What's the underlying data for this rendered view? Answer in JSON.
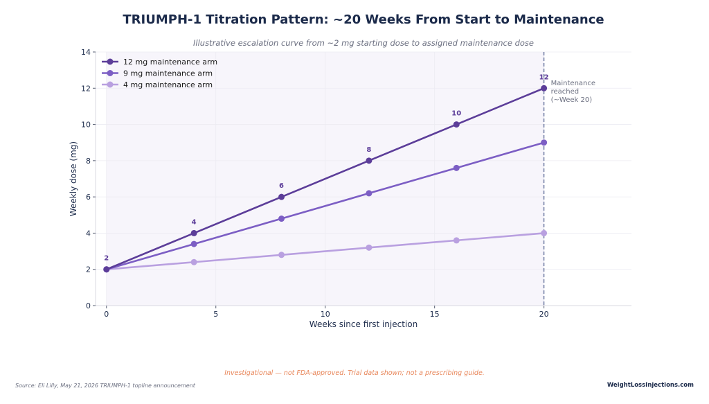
{
  "title": "TRIUMPH-1 Titration Pattern: ~20 Weeks From Start to Maintenance",
  "subtitle": "Illustrative escalation curve from ~2 mg starting dose to assigned maintenance dose",
  "footer": {
    "disclaimer": "Investigational — not FDA-approved. Trial data shown; not a prescribing guide.",
    "source": "Source: Eli Lilly, May 21, 2026 TRIUMPH-1 topline announcement",
    "brand": "WeightLossInjections.com"
  },
  "chart_data": {
    "type": "line",
    "xlabel": "Weeks since first injection",
    "ylabel": "Weekly dose (mg)",
    "xlim": [
      -0.5,
      24
    ],
    "ylim": [
      0,
      14
    ],
    "xticks": [
      0,
      5,
      10,
      15,
      20
    ],
    "yticks": [
      0,
      2,
      4,
      6,
      8,
      10,
      12,
      14
    ],
    "grid": true,
    "legend_position": "top-left",
    "shaded_region": {
      "x_from": 0,
      "x_to": 20,
      "color": "#f7f5fb"
    },
    "series": [
      {
        "name": "12 mg maintenance arm",
        "color": "#5c3d99",
        "x": [
          0,
          4,
          8,
          12,
          16,
          20
        ],
        "y": [
          2,
          4,
          6,
          8,
          10,
          12
        ],
        "labels": [
          "2",
          "4",
          "6",
          "8",
          "10",
          "12"
        ]
      },
      {
        "name": "9 mg maintenance arm",
        "color": "#7c5ec4",
        "x": [
          0,
          4,
          8,
          12,
          16,
          20
        ],
        "y": [
          2,
          3.4,
          4.8,
          6.2,
          7.6,
          9
        ]
      },
      {
        "name": "4 mg maintenance arm",
        "color": "#b9a0e0",
        "x": [
          0,
          4,
          8,
          12,
          16,
          20
        ],
        "y": [
          2,
          2.4,
          2.8,
          3.2,
          3.6,
          4
        ]
      }
    ],
    "annotation": {
      "x": 20,
      "text_lines": [
        "Maintenance",
        "reached",
        "(~Week 20)"
      ],
      "line_color": "#4a5a8a"
    }
  }
}
